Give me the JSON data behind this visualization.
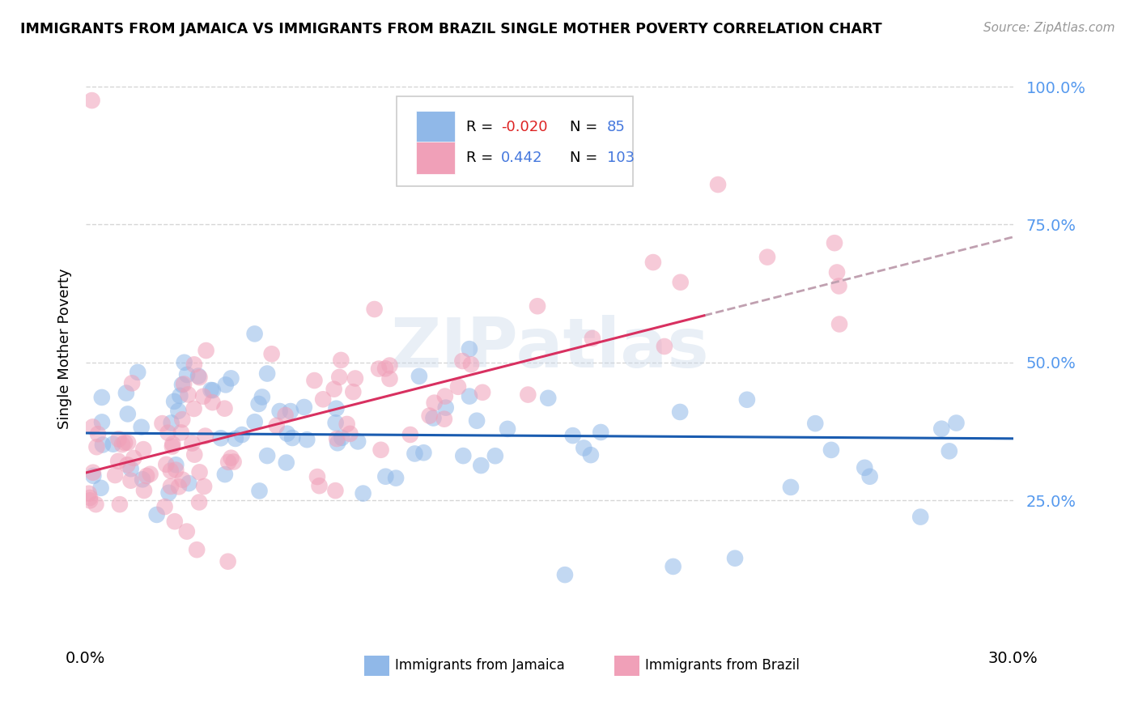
{
  "title": "IMMIGRANTS FROM JAMAICA VS IMMIGRANTS FROM BRAZIL SINGLE MOTHER POVERTY CORRELATION CHART",
  "source": "Source: ZipAtlas.com",
  "ylabel": "Single Mother Poverty",
  "x_min": 0.0,
  "x_max": 0.3,
  "y_min": 0.0,
  "y_max": 1.05,
  "color_jamaica": "#90b8e8",
  "color_brazil": "#f0a0b8",
  "color_jamaica_line": "#1a5cb0",
  "color_brazil_line": "#d83060",
  "color_dashed": "#c0a0b0",
  "background_color": "#ffffff",
  "grid_color": "#cccccc",
  "r_jamaica": -0.02,
  "n_jamaica": 85,
  "r_brazil": 0.442,
  "n_brazil": 103,
  "jamaica_trendline": [
    0.372,
    0.362
  ],
  "brazil_trendline_solid_end": 0.2,
  "brazil_trendline_y0": 0.3,
  "brazil_trendline_y1_solid": 0.585,
  "brazil_trendline_y1_dashed": 0.695,
  "y_ticks": [
    0.25,
    0.5,
    0.75,
    1.0
  ],
  "y_tick_labels": [
    "25.0%",
    "50.0%",
    "75.0%",
    "100.0%"
  ],
  "x_tick_labels": [
    "0.0%",
    "30.0%"
  ],
  "legend_r1_color": "#dd2222",
  "legend_num_color": "#4477dd",
  "bottom_label1": "Immigrants from Jamaica",
  "bottom_label2": "Immigrants from Brazil",
  "tick_color": "#5599ee"
}
